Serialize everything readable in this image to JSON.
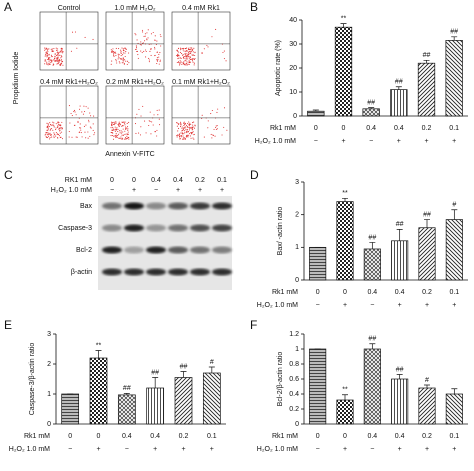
{
  "panel_labels": [
    "A",
    "B",
    "C",
    "D",
    "E",
    "F"
  ],
  "panel_a": {
    "plots": [
      "Control",
      "1.0 mM H₂O₂",
      "0.4 mM Rk1",
      "0.4 mM Rk1+H₂O₂",
      "0.2 mM Rk1+H₂O₂",
      "0.1 mM Rk1+H₂O₂"
    ],
    "ylabel": "Propidium Iodide",
    "xlabel": "Annexin V-FITC"
  },
  "panel_c": {
    "rows": [
      {
        "name": "RK1 mM",
        "values": [
          0,
          0,
          0.4,
          0.4,
          0.2,
          0.1
        ]
      },
      {
        "name": "H₂O₂ 1.0 mM",
        "values": [
          "−",
          "+",
          "−",
          "+",
          "+",
          "+"
        ]
      }
    ],
    "bands": [
      "Bax",
      "Caspase-3",
      "Bcl-2",
      "β-actin"
    ]
  },
  "chart_data": [
    {
      "type": "bar",
      "ylabel": "Apoptotic rate (%)",
      "values": [
        2,
        37,
        3,
        11,
        22,
        31.5
      ],
      "errors": [
        0.5,
        1.5,
        0.5,
        1.2,
        1.2,
        1.5
      ],
      "annotations": [
        null,
        "**",
        "##",
        "##",
        "##",
        "##"
      ],
      "ylim": [
        0,
        40
      ],
      "yticks": [
        0,
        10,
        20,
        30,
        40
      ],
      "rows": [
        {
          "name": "Rk1 mM",
          "values": [
            0,
            0,
            0.4,
            0.4,
            0.2,
            0.1
          ]
        },
        {
          "name": "H₂O₂ 1.0 mM",
          "values": [
            "−",
            "+",
            "−",
            "+",
            "+",
            "+"
          ]
        }
      ]
    },
    {
      "type": "bar",
      "ylabel": "Bax/ -actin ratio",
      "values": [
        1.0,
        2.4,
        0.95,
        1.2,
        1.6,
        1.85
      ],
      "errors": [
        0,
        0.1,
        0.2,
        0.35,
        0.25,
        0.3
      ],
      "annotations": [
        null,
        "**",
        "##",
        "##",
        "##",
        "#"
      ],
      "ylim": [
        0,
        3
      ],
      "yticks": [
        0,
        1,
        2,
        3
      ],
      "rows": [
        {
          "name": "Rk1 mM",
          "values": [
            0,
            0,
            0.4,
            0.4,
            0.2,
            0.1
          ]
        },
        {
          "name": "H₂O₂ 1.0 mM",
          "values": [
            "−",
            "+",
            "−",
            "+",
            "+",
            "+"
          ]
        }
      ]
    },
    {
      "type": "bar",
      "ylabel": "Caspase-3/β-actin ratio",
      "values": [
        1.0,
        2.2,
        0.97,
        1.2,
        1.55,
        1.7
      ],
      "errors": [
        0,
        0.25,
        0.05,
        0.35,
        0.2,
        0.2
      ],
      "annotations": [
        null,
        "**",
        "##",
        "##",
        "##",
        "#"
      ],
      "ylim": [
        0,
        3
      ],
      "yticks": [
        0,
        1,
        2,
        3
      ],
      "rows": [
        {
          "name": "Rk1 mM",
          "values": [
            0,
            0,
            0.4,
            0.4,
            0.2,
            0.1
          ]
        },
        {
          "name": "H₂O₂ 1.0 mM",
          "values": [
            "−",
            "+",
            "−",
            "+",
            "+",
            "+"
          ]
        }
      ]
    },
    {
      "type": "bar",
      "ylabel": "Bcl-2/β-actin ratio",
      "values": [
        1.0,
        0.32,
        1.0,
        0.6,
        0.48,
        0.4
      ],
      "errors": [
        0,
        0.07,
        0.07,
        0.06,
        0.04,
        0.07
      ],
      "annotations": [
        null,
        "**",
        "##",
        "##",
        "#",
        null
      ],
      "ylim": [
        0,
        1.2
      ],
      "yticks": [
        0,
        0.2,
        0.4,
        0.6,
        0.8,
        1,
        1.2
      ],
      "rows": [
        {
          "name": "Rk1 mM",
          "values": [
            0,
            0,
            0.4,
            0.4,
            0.2,
            0.1
          ]
        },
        {
          "name": "H₂O₂ 1.0 mM",
          "values": [
            "−",
            "+",
            "−",
            "+",
            "+",
            "+"
          ]
        }
      ]
    }
  ]
}
